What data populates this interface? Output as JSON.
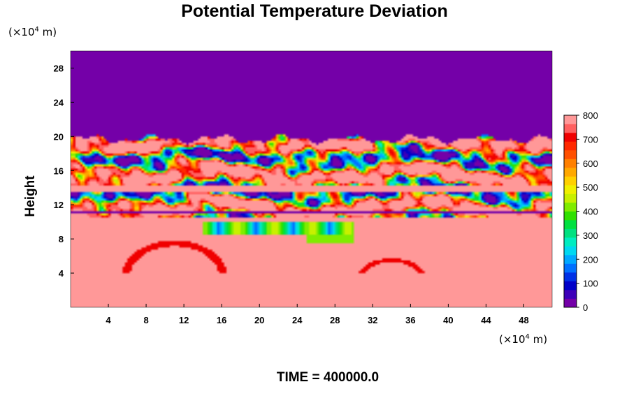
{
  "chart_data": {
    "type": "heatmap",
    "title": "Potential Temperature Deviation",
    "ylabel": "Height",
    "x_unit_prefix": "(×10",
    "x_unit_exp": "4",
    "x_unit_suffix": " m)",
    "y_unit_prefix": "(×10",
    "y_unit_exp": "4",
    "y_unit_suffix": " m)",
    "footer": "TIME = 400000.0",
    "xlim": [
      0,
      51
    ],
    "ylim": [
      0,
      30
    ],
    "x_ticks": [
      4,
      8,
      12,
      16,
      20,
      24,
      28,
      32,
      36,
      40,
      44,
      48
    ],
    "y_ticks": [
      4,
      8,
      12,
      16,
      20,
      24,
      28
    ],
    "colorbar": {
      "min": 0,
      "max": 800,
      "ticks": [
        0,
        100,
        200,
        300,
        400,
        500,
        600,
        700,
        800
      ],
      "colors": [
        "#7400a8",
        "#3d00b8",
        "#0000c8",
        "#0030e6",
        "#0070ff",
        "#00a8ff",
        "#00d8f0",
        "#00ecc0",
        "#00e080",
        "#00e040",
        "#30e000",
        "#80ec00",
        "#c8f000",
        "#f0f000",
        "#ffd000",
        "#ffa800",
        "#ff8000",
        "#ff5000",
        "#ff2800",
        "#f00000",
        "#ff6060",
        "#ff9898"
      ]
    },
    "regions": [
      {
        "name": "upper uniform layer",
        "y_range": [
          20,
          30
        ],
        "value": 0
      },
      {
        "name": "turbulent layer",
        "y_range": [
          10.5,
          20
        ],
        "value": "mixed 0-800"
      },
      {
        "name": "lower layer",
        "y_range": [
          0,
          10.5
        ],
        "value": 800
      }
    ]
  },
  "colors": {
    "background": "#ffffff",
    "low": "#7400a8",
    "high": "#ff9898"
  }
}
